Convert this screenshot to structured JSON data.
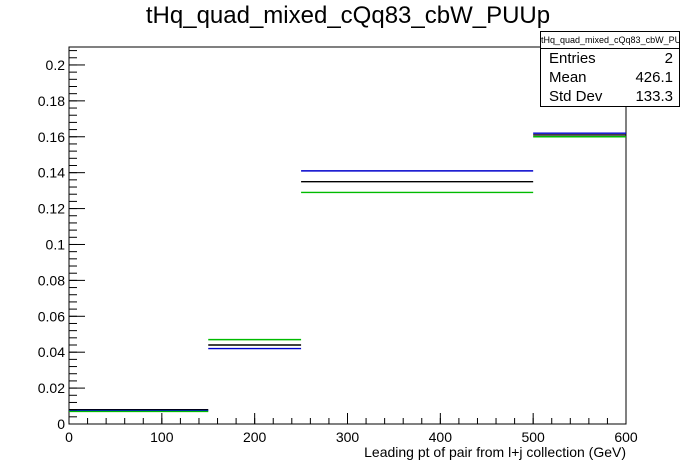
{
  "chart_data": {
    "type": "histogram",
    "title": "tHq_quad_mixed_cQq83_cbW_PUUp",
    "xlabel": "Leading pt of pair from l+j collection (GeV)",
    "ylabel": "",
    "xlim": [
      0,
      600
    ],
    "ylim": [
      0,
      0.21
    ],
    "x_ticks": [
      0,
      100,
      200,
      300,
      400,
      500,
      600
    ],
    "y_ticks": [
      0,
      0.02,
      0.04,
      0.06,
      0.08,
      0.1,
      0.12,
      0.14,
      0.16,
      0.18,
      0.2
    ],
    "bin_edges": [
      0,
      150,
      250,
      500,
      600
    ],
    "series": [
      {
        "color": "#000000",
        "values": [
          0.008,
          0.044,
          0.135,
          0.161
        ]
      },
      {
        "color": "#0000cc",
        "values": [
          0.0075,
          0.042,
          0.141,
          0.162
        ]
      },
      {
        "color": "#00bb00",
        "values": [
          0.007,
          0.047,
          0.129,
          0.16
        ]
      }
    ],
    "stats_box": {
      "name": "tHq_quad_mixed_cQq83_cbW_PUUp",
      "rows": [
        {
          "label": "Entries",
          "value": "2"
        },
        {
          "label": "Mean",
          "value": "426.1"
        },
        {
          "label": "Std Dev",
          "value": "133.3"
        }
      ]
    }
  }
}
